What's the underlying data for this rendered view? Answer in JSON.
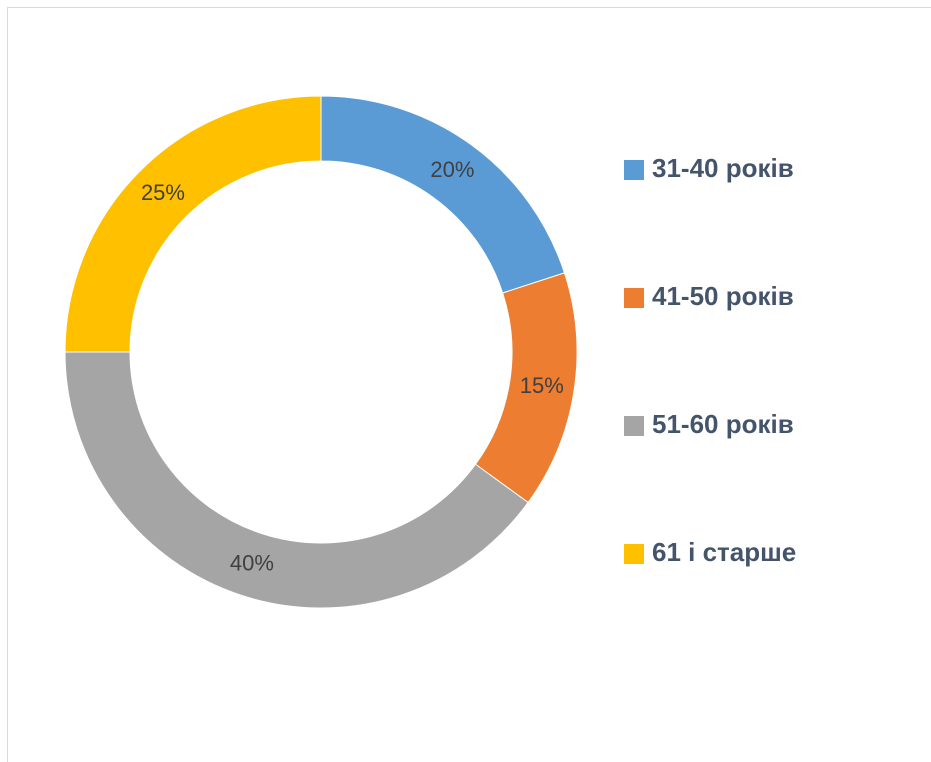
{
  "chart_data": {
    "type": "donut",
    "categories": [
      "31-40 років",
      "41-50 років",
      "51-60 років",
      "61 і старше"
    ],
    "values": [
      20,
      15,
      40,
      25
    ],
    "value_labels": [
      "20%",
      "15%",
      "40%",
      "25%"
    ],
    "colors": [
      "#5b9bd5",
      "#ed7d31",
      "#a5a5a5",
      "#ffc000"
    ],
    "legend": "right"
  }
}
